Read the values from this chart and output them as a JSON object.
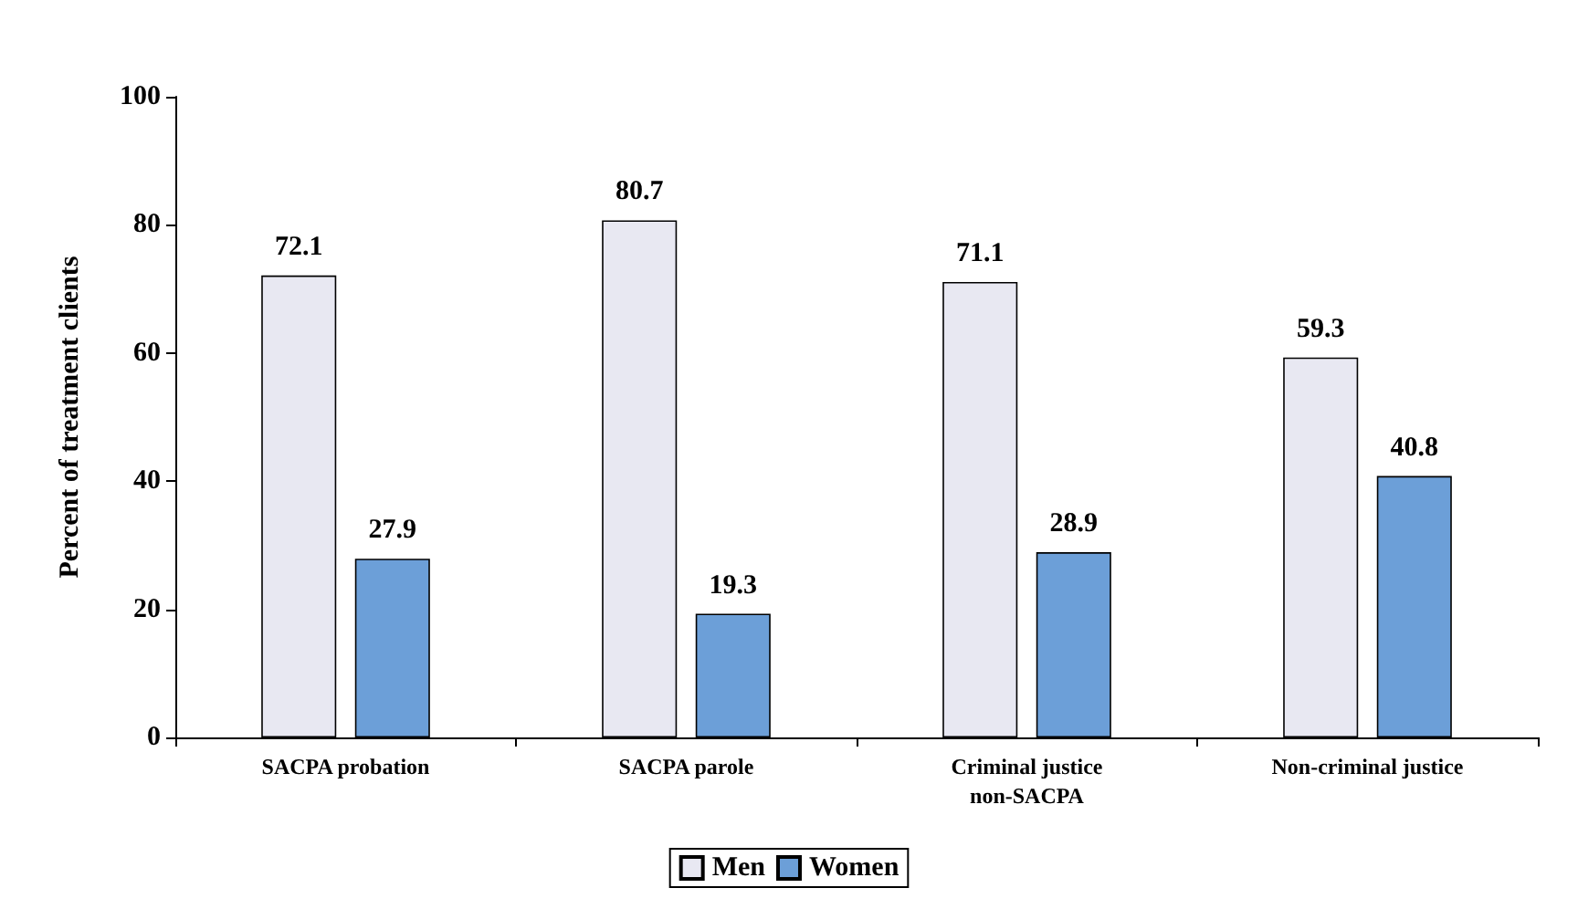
{
  "chart_data": {
    "type": "bar",
    "ylabel": "Percent of treatment clients",
    "categories": [
      "SACPA probation",
      "SACPA parole",
      "Criminal justice\nnon-SACPA",
      "Non-criminal justice"
    ],
    "series": [
      {
        "name": "Men",
        "color": "#e8e8f2",
        "values": [
          72.1,
          80.7,
          71.1,
          59.3
        ]
      },
      {
        "name": "Women",
        "color": "#6c9fd8",
        "values": [
          27.9,
          19.3,
          28.9,
          40.8
        ]
      }
    ],
    "ylim": [
      0,
      100
    ],
    "yticks": [
      0,
      20,
      40,
      60,
      80,
      100
    ],
    "grid": false,
    "legend": "bottom",
    "data_labels": true
  }
}
